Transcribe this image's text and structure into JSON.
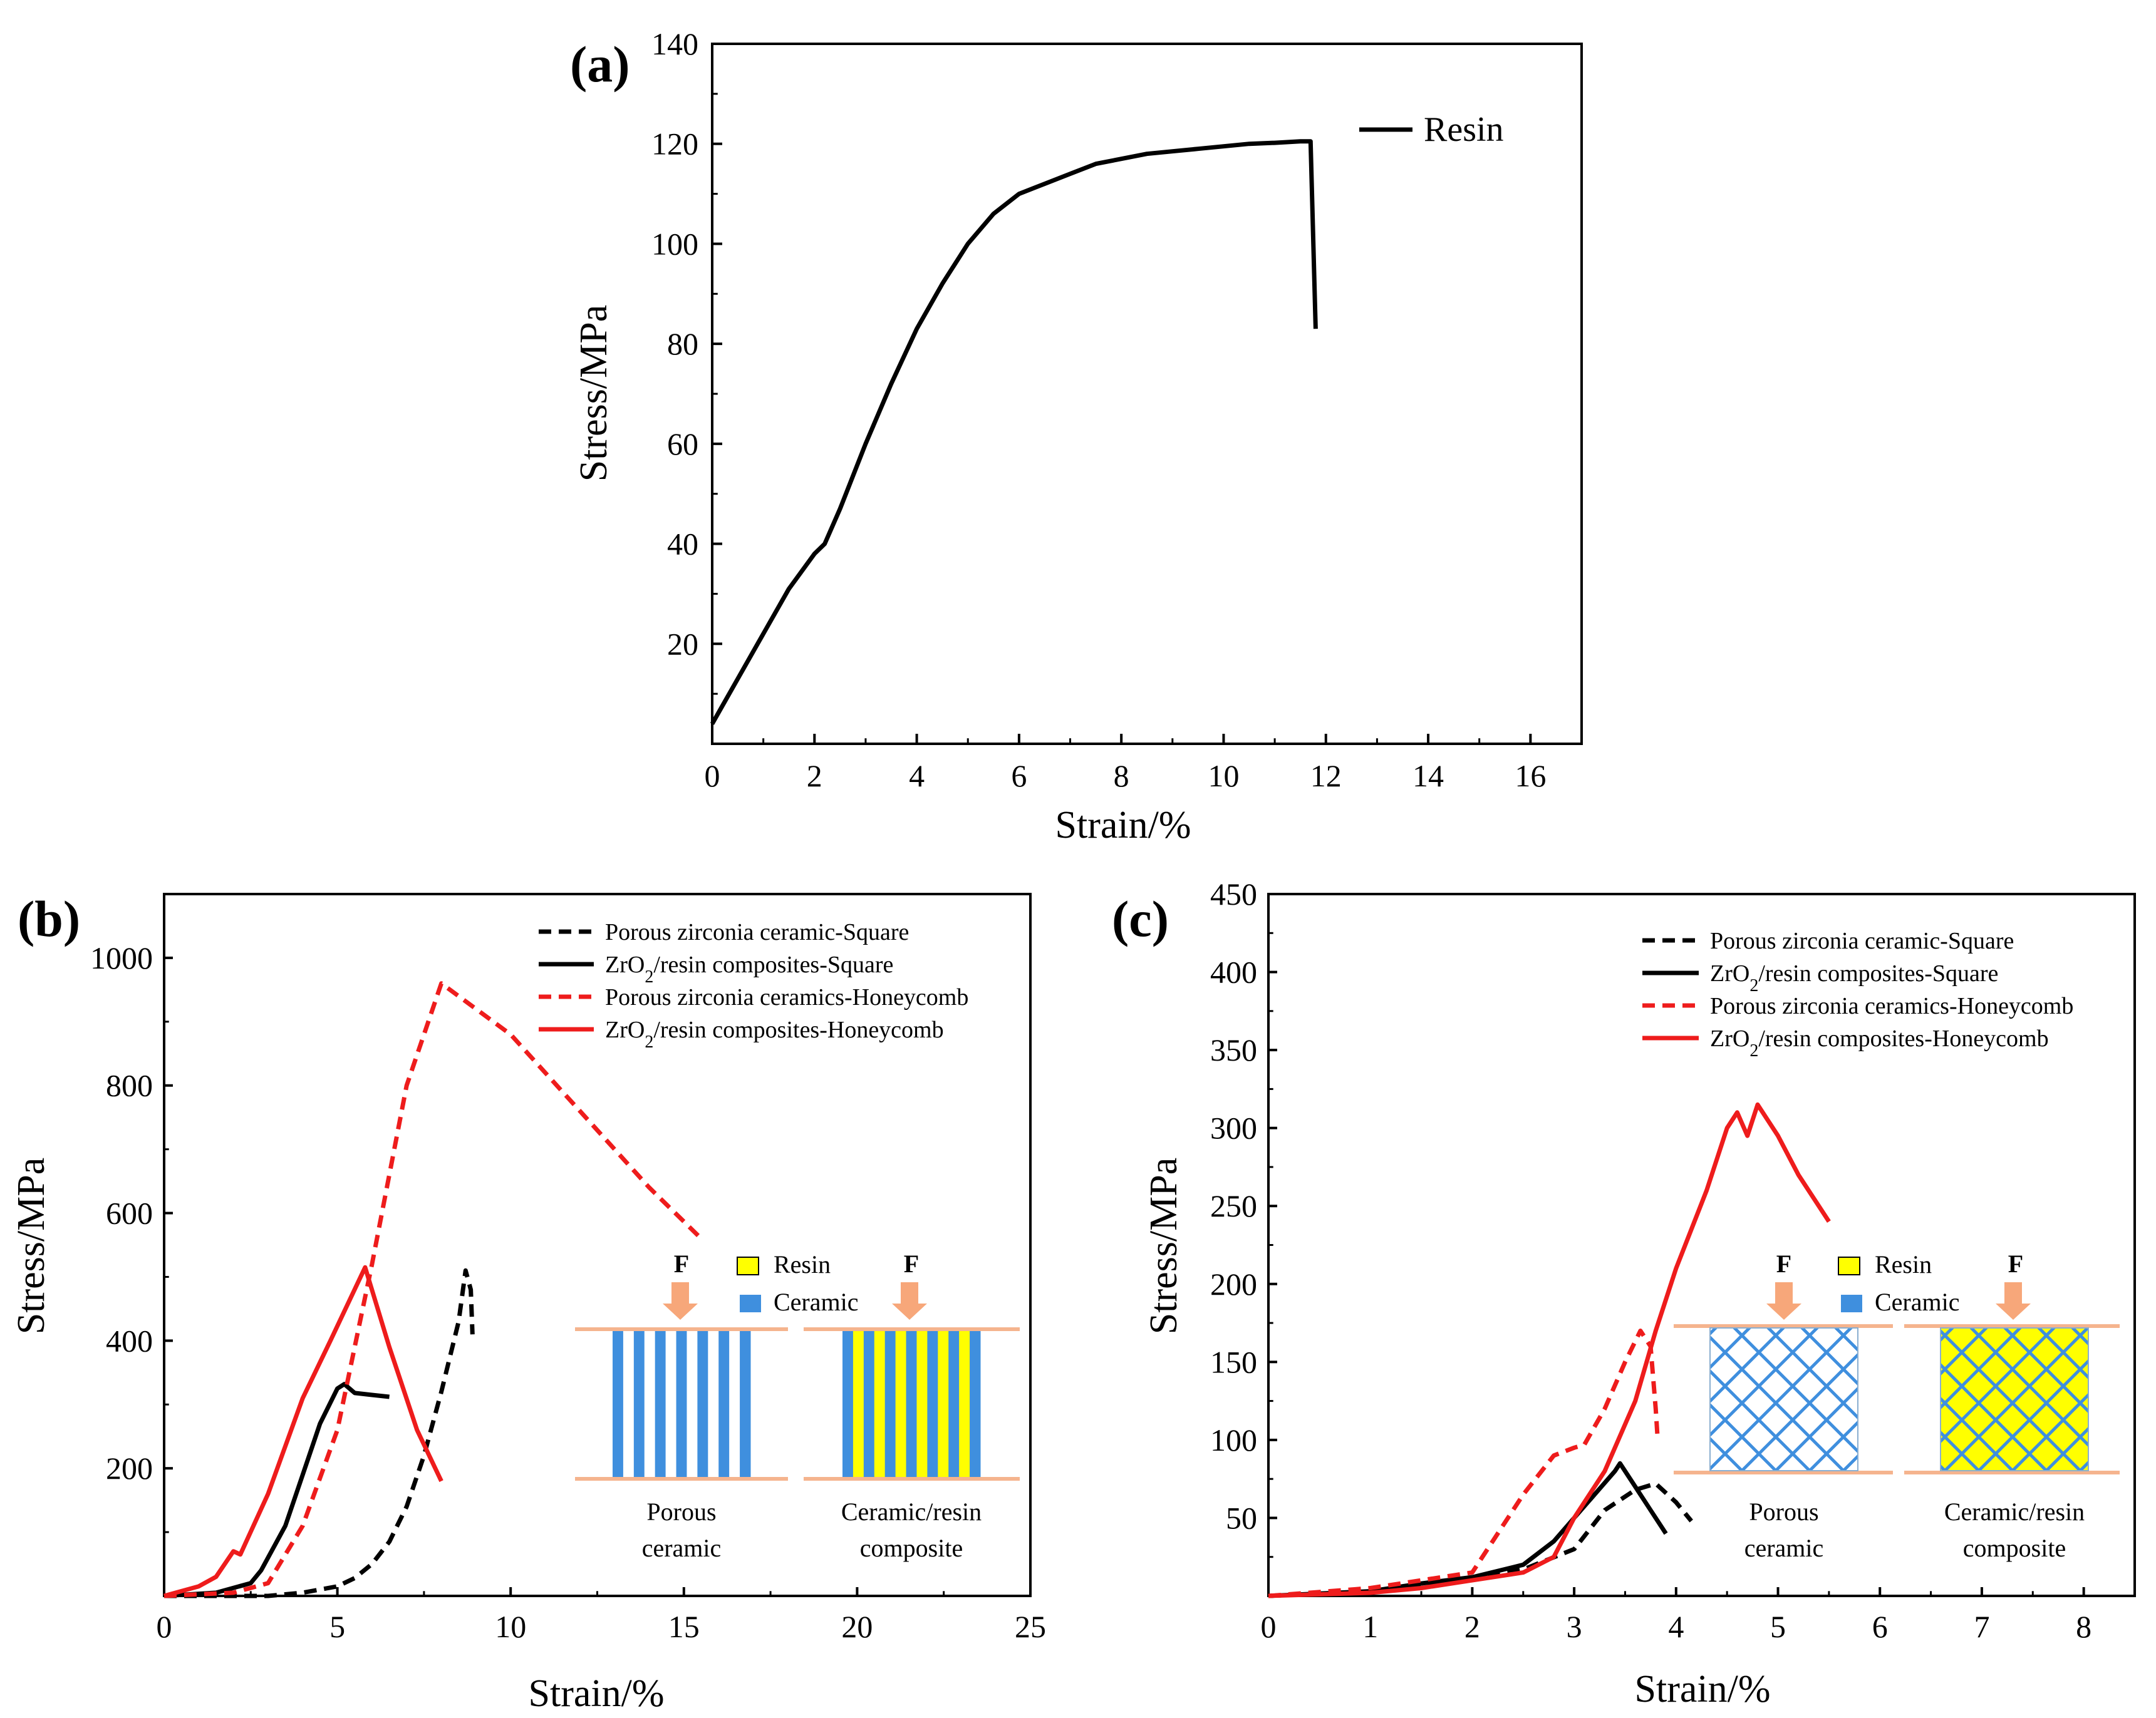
{
  "chart_data": [
    {
      "type": "line",
      "panel_label": "(a)",
      "xlabel": "Strain/%",
      "ylabel": "Stress/MPa",
      "xlim": [
        0,
        17
      ],
      "ylim": [
        0,
        140
      ],
      "xticks": [
        0,
        2,
        4,
        6,
        8,
        10,
        12,
        14,
        16
      ],
      "yticks": [
        20,
        40,
        60,
        80,
        100,
        120
      ],
      "ytick_top_label": "140",
      "legend_position": "top-right",
      "series": [
        {
          "name": "Resin",
          "color": "#000000",
          "dash": "solid",
          "x": [
            0,
            0.5,
            1.0,
            1.5,
            2.0,
            2.2,
            2.5,
            3.0,
            3.5,
            4.0,
            4.5,
            5.0,
            5.5,
            6.0,
            6.5,
            7.0,
            7.5,
            8.0,
            8.5,
            9.0,
            9.5,
            10.0,
            10.5,
            11.0,
            11.5,
            11.7,
            11.8
          ],
          "y": [
            4,
            13,
            22,
            31,
            38,
            40,
            47,
            60,
            72,
            83,
            92,
            100,
            106,
            110,
            112,
            114,
            116,
            117,
            118,
            118.5,
            119,
            119.5,
            120,
            120.2,
            120.5,
            120.5,
            83
          ]
        }
      ]
    },
    {
      "type": "line",
      "panel_label": "(b)",
      "xlabel": "Strain/%",
      "ylabel": "Stress/MPa",
      "xlim": [
        0,
        25
      ],
      "ylim": [
        0,
        1100
      ],
      "xticks": [
        0,
        5,
        10,
        15,
        20,
        25
      ],
      "yticks": [
        200,
        400,
        600,
        800,
        1000
      ],
      "legend_position": "top-right",
      "series": [
        {
          "name": "Porous zirconia ceramic-Square",
          "color": "#000000",
          "dash": "dashed",
          "x": [
            0,
            3,
            4,
            5,
            5.5,
            6,
            6.5,
            7,
            7.5,
            8,
            8.5,
            8.7,
            8.85,
            8.9
          ],
          "y": [
            0,
            0,
            5,
            15,
            28,
            50,
            85,
            140,
            220,
            320,
            430,
            510,
            480,
            410
          ]
        },
        {
          "name": "ZrO₂/resin composites-Square",
          "color": "#000000",
          "dash": "solid",
          "x": [
            0,
            1.5,
            2.5,
            2.8,
            3.5,
            4,
            4.5,
            5,
            5.2,
            5.5,
            6,
            6.5
          ],
          "y": [
            0,
            5,
            20,
            40,
            110,
            190,
            270,
            325,
            332,
            318,
            315,
            312
          ]
        },
        {
          "name": "Porous zirconia ceramics-Honeycomb",
          "color": "#ee1c1c",
          "dash": "dashed",
          "x": [
            0,
            2,
            3,
            4,
            5,
            6,
            7,
            8,
            10,
            12,
            14,
            15.5
          ],
          "y": [
            0,
            5,
            20,
            110,
            260,
            520,
            800,
            960,
            880,
            760,
            640,
            560
          ]
        },
        {
          "name": "ZrO₂/resin composites-Honeycomb",
          "color": "#ee1c1c",
          "dash": "solid",
          "x": [
            0,
            1,
            1.5,
            2,
            2.2,
            3,
            4,
            4.8,
            5.8,
            6.5,
            7.3,
            8
          ],
          "y": [
            0,
            15,
            30,
            70,
            65,
            160,
            310,
            400,
            515,
            390,
            260,
            180
          ]
        }
      ]
    },
    {
      "type": "line",
      "panel_label": "(c)",
      "xlabel": "Strain/%",
      "ylabel": "Stress/MPa",
      "xlim": [
        0,
        8.5
      ],
      "ylim": [
        0,
        450
      ],
      "xticks": [
        0,
        1,
        2,
        3,
        4,
        5,
        6,
        7,
        8
      ],
      "yticks": [
        50,
        100,
        150,
        200,
        250,
        300,
        350,
        400,
        450
      ],
      "legend_position": "top-right",
      "series": [
        {
          "name": "Porous zirconia ceramic-Square",
          "color": "#000000",
          "dash": "dashed",
          "x": [
            0,
            1,
            1.5,
            2,
            2.5,
            3,
            3.3,
            3.6,
            3.8,
            4.0,
            4.15
          ],
          "y": [
            0,
            3,
            6,
            12,
            17,
            30,
            55,
            68,
            72,
            60,
            48
          ]
        },
        {
          "name": "ZrO₂/resin composites-Square",
          "color": "#000000",
          "dash": "solid",
          "x": [
            0,
            1,
            1.5,
            2,
            2.5,
            2.8,
            3.0,
            3.2,
            3.4,
            3.45,
            3.6,
            3.75,
            3.9
          ],
          "y": [
            0,
            3,
            8,
            12,
            20,
            35,
            50,
            65,
            80,
            85,
            70,
            55,
            40
          ]
        },
        {
          "name": "Porous zirconia ceramics-Honeycomb",
          "color": "#ee1c1c",
          "dash": "dashed",
          "x": [
            0,
            1,
            1.5,
            2.0,
            2.2,
            2.5,
            2.8,
            3.0,
            3.1,
            3.3,
            3.5,
            3.65,
            3.75,
            3.8,
            3.82
          ],
          "y": [
            0,
            5,
            10,
            15,
            35,
            65,
            90,
            95,
            97,
            120,
            150,
            170,
            160,
            120,
            100
          ]
        },
        {
          "name": "ZrO₂/resin composites-Honeycomb",
          "color": "#ee1c1c",
          "dash": "solid",
          "x": [
            0,
            1,
            1.5,
            2,
            2.5,
            2.8,
            3.0,
            3.3,
            3.6,
            3.8,
            4.0,
            4.3,
            4.5,
            4.6,
            4.7,
            4.8,
            5.0,
            5.2,
            5.5
          ],
          "y": [
            0,
            2,
            5,
            10,
            15,
            25,
            50,
            80,
            125,
            170,
            210,
            260,
            300,
            310,
            295,
            315,
            295,
            270,
            240
          ]
        }
      ]
    }
  ],
  "schematic": {
    "force_label": "F",
    "resin_label": "Resin",
    "ceramic_label": "Ceramic",
    "porous_caption": [
      "Porous",
      "ceramic"
    ],
    "composite_caption": [
      "Ceramic/resin",
      "composite"
    ],
    "colors": {
      "resin": "#ffff00",
      "ceramic": "#3f8fde",
      "arrow": "#f7a77a",
      "plate": "#f5b48e"
    }
  }
}
